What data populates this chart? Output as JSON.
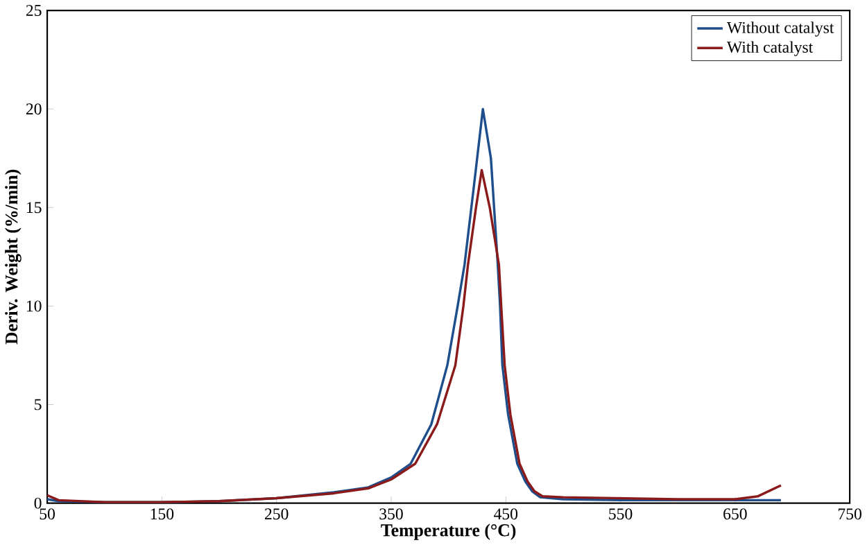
{
  "chart_data": {
    "type": "line",
    "xlabel": "Temperature (°C)",
    "ylabel": "Deriv. Weight (%/min)",
    "xlim": [
      50,
      750
    ],
    "xticks": [
      50,
      150,
      250,
      350,
      450,
      550,
      650,
      750
    ],
    "ylim": [
      0,
      25
    ],
    "yticks": [
      0,
      5,
      10,
      15,
      20,
      25
    ],
    "grid": false,
    "legend": "top right",
    "marker": "none",
    "line_style": "solid",
    "series": [
      {
        "name": "Without catalyst",
        "color": "#1f4e8c",
        "x": [
          50,
          60,
          100,
          150,
          200,
          250,
          300,
          330,
          350,
          367,
          385,
          399,
          408,
          414,
          422,
          430,
          437,
          443,
          445,
          447,
          452,
          460,
          467,
          473,
          480,
          500,
          550,
          600,
          650,
          690
        ],
        "values": [
          0.2,
          0.1,
          0.05,
          0.05,
          0.1,
          0.25,
          0.55,
          0.8,
          1.3,
          2.0,
          4.0,
          7.0,
          10.0,
          12.1,
          16.0,
          20.0,
          17.5,
          12.1,
          10.0,
          7.0,
          4.5,
          2.0,
          1.1,
          0.6,
          0.3,
          0.2,
          0.15,
          0.15,
          0.15,
          0.15
        ]
      },
      {
        "name": "With catalyst",
        "color": "#8b1a1a",
        "x": [
          50,
          60,
          100,
          150,
          200,
          250,
          300,
          330,
          350,
          371,
          390,
          406,
          413,
          417,
          424,
          429,
          436,
          444,
          446,
          449,
          454,
          462,
          469,
          475,
          482,
          500,
          550,
          600,
          650,
          670,
          690
        ],
        "values": [
          0.4,
          0.15,
          0.05,
          0.05,
          0.1,
          0.25,
          0.5,
          0.75,
          1.2,
          2.0,
          4.0,
          7.0,
          10.0,
          12.1,
          15.0,
          16.9,
          15.0,
          12.1,
          10.0,
          7.0,
          4.5,
          2.0,
          1.1,
          0.6,
          0.35,
          0.3,
          0.25,
          0.2,
          0.2,
          0.35,
          0.9
        ]
      }
    ]
  }
}
